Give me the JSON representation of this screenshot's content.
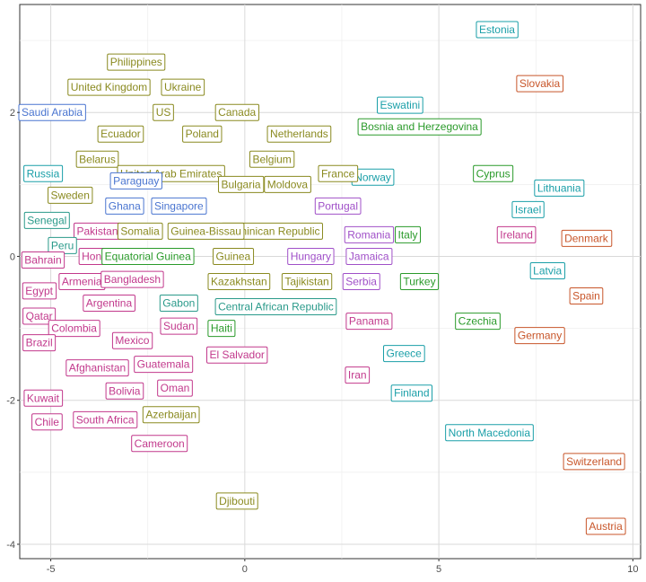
{
  "chart_data": {
    "type": "scatter",
    "title": "",
    "xlabel": "",
    "ylabel": "",
    "xlim": [
      -5.8,
      10.2
    ],
    "ylim": [
      -4.2,
      3.5
    ],
    "x_ticks": [
      -5,
      0,
      5,
      10
    ],
    "y_ticks": [
      -4,
      -2,
      0,
      2
    ],
    "grid": true,
    "legend": "none",
    "points": [
      {
        "label": "Estonia",
        "x": 6.5,
        "y": 3.15,
        "color": "#1a9fa8"
      },
      {
        "label": "Slovakia",
        "x": 7.6,
        "y": 2.4,
        "color": "#c8562a"
      },
      {
        "label": "Eswatini",
        "x": 4.0,
        "y": 2.1,
        "color": "#1a9fa8"
      },
      {
        "label": "Bosnia and Herzegovina",
        "x": 4.5,
        "y": 1.8,
        "color": "#2a9a2a"
      },
      {
        "label": "Cyprus",
        "x": 6.4,
        "y": 1.15,
        "color": "#2a9a2a"
      },
      {
        "label": "Lithuania",
        "x": 8.1,
        "y": 0.95,
        "color": "#1a9fa8"
      },
      {
        "label": "Israel",
        "x": 7.3,
        "y": 0.65,
        "color": "#1a9fa8"
      },
      {
        "label": "Ireland",
        "x": 7.0,
        "y": 0.3,
        "color": "#c2398c"
      },
      {
        "label": "Denmark",
        "x": 8.8,
        "y": 0.25,
        "color": "#c8562a"
      },
      {
        "label": "Latvia",
        "x": 7.8,
        "y": -0.2,
        "color": "#1a9fa8"
      },
      {
        "label": "Spain",
        "x": 8.8,
        "y": -0.55,
        "color": "#c8562a"
      },
      {
        "label": "Czechia",
        "x": 6.0,
        "y": -0.9,
        "color": "#2a9a2a"
      },
      {
        "label": "Germany",
        "x": 7.6,
        "y": -1.1,
        "color": "#c8562a"
      },
      {
        "label": "North Macedonia",
        "x": 6.3,
        "y": -2.45,
        "color": "#1a9fa8"
      },
      {
        "label": "Switzerland",
        "x": 9.0,
        "y": -2.85,
        "color": "#c8562a"
      },
      {
        "label": "Austria",
        "x": 9.3,
        "y": -3.75,
        "color": "#c8562a"
      },
      {
        "label": "Norway",
        "x": 3.3,
        "y": 1.1,
        "color": "#1a9fa8"
      },
      {
        "label": "France",
        "x": 2.4,
        "y": 1.15,
        "color": "#8a8a20"
      },
      {
        "label": "Portugal",
        "x": 2.4,
        "y": 0.7,
        "color": "#a050c8"
      },
      {
        "label": "Romania",
        "x": 3.2,
        "y": 0.3,
        "color": "#a050c8"
      },
      {
        "label": "Italy",
        "x": 4.2,
        "y": 0.3,
        "color": "#2a9a2a"
      },
      {
        "label": "Jamaica",
        "x": 3.2,
        "y": 0.0,
        "color": "#a050c8"
      },
      {
        "label": "Serbia",
        "x": 3.0,
        "y": -0.35,
        "color": "#a050c8"
      },
      {
        "label": "Turkey",
        "x": 4.5,
        "y": -0.35,
        "color": "#2a9a2a"
      },
      {
        "label": "Panama",
        "x": 3.2,
        "y": -0.9,
        "color": "#c2398c"
      },
      {
        "label": "Greece",
        "x": 4.1,
        "y": -1.35,
        "color": "#1a9fa8"
      },
      {
        "label": "Iran",
        "x": 2.9,
        "y": -1.65,
        "color": "#c2398c"
      },
      {
        "label": "Finland",
        "x": 4.3,
        "y": -1.9,
        "color": "#1a9fa8"
      },
      {
        "label": "Hungary",
        "x": 1.7,
        "y": 0.0,
        "color": "#a050c8"
      },
      {
        "label": "Tajikistan",
        "x": 1.6,
        "y": -0.35,
        "color": "#8a8a20"
      },
      {
        "label": "Dominican Republic",
        "x": 0.7,
        "y": 0.35,
        "color": "#8a8a20"
      },
      {
        "label": "Moldova",
        "x": 1.1,
        "y": 1.0,
        "color": "#8a8a20"
      },
      {
        "label": "Netherlands",
        "x": 1.4,
        "y": 1.7,
        "color": "#8a8a20"
      },
      {
        "label": "Belgium",
        "x": 0.7,
        "y": 1.35,
        "color": "#8a8a20"
      },
      {
        "label": "Canada",
        "x": -0.2,
        "y": 2.0,
        "color": "#8a8a20"
      },
      {
        "label": "Poland",
        "x": -1.1,
        "y": 1.7,
        "color": "#8a8a20"
      },
      {
        "label": "Ukraine",
        "x": -1.6,
        "y": 2.35,
        "color": "#8a8a20"
      },
      {
        "label": "Philippines",
        "x": -2.8,
        "y": 2.7,
        "color": "#8a8a20"
      },
      {
        "label": "United Kingdom",
        "x": -3.5,
        "y": 2.35,
        "color": "#8a8a20"
      },
      {
        "label": "US",
        "x": -2.1,
        "y": 2.0,
        "color": "#8a8a20"
      },
      {
        "label": "Saudi Arabia",
        "x": -5.0,
        "y": 2.0,
        "color": "#4a75d0"
      },
      {
        "label": "Ecuador",
        "x": -3.2,
        "y": 1.7,
        "color": "#8a8a20"
      },
      {
        "label": "Belarus",
        "x": -3.8,
        "y": 1.35,
        "color": "#8a8a20"
      },
      {
        "label": "United Arab Emirates",
        "x": -1.9,
        "y": 1.15,
        "color": "#8a8a20"
      },
      {
        "label": "Paraguay",
        "x": -2.8,
        "y": 1.05,
        "color": "#4a75d0"
      },
      {
        "label": "Bulgaria",
        "x": -0.1,
        "y": 1.0,
        "color": "#8a8a20"
      },
      {
        "label": "Russia",
        "x": -5.2,
        "y": 1.15,
        "color": "#1a9fa8"
      },
      {
        "label": "Sweden",
        "x": -4.5,
        "y": 0.85,
        "color": "#8a8a20"
      },
      {
        "label": "Ghana",
        "x": -3.1,
        "y": 0.7,
        "color": "#4a75d0"
      },
      {
        "label": "Singapore",
        "x": -1.7,
        "y": 0.7,
        "color": "#4a75d0"
      },
      {
        "label": "Senegal",
        "x": -5.1,
        "y": 0.5,
        "color": "#2a9a8a"
      },
      {
        "label": "Pakistan",
        "x": -3.8,
        "y": 0.35,
        "color": "#c2398c"
      },
      {
        "label": "Somalia",
        "x": -2.7,
        "y": 0.35,
        "color": "#8a8a20"
      },
      {
        "label": "Guinea-Bissau",
        "x": -1.0,
        "y": 0.35,
        "color": "#8a8a20"
      },
      {
        "label": "Peru",
        "x": -4.7,
        "y": 0.15,
        "color": "#2a9a8a"
      },
      {
        "label": "Bahrain",
        "x": -5.2,
        "y": -0.05,
        "color": "#c2398c"
      },
      {
        "label": "Honduras",
        "x": -3.6,
        "y": 0.0,
        "color": "#c2398c"
      },
      {
        "label": "Equatorial Guinea",
        "x": -2.5,
        "y": 0.0,
        "color": "#2a9a2a"
      },
      {
        "label": "Guinea",
        "x": -0.3,
        "y": 0.0,
        "color": "#8a8a20"
      },
      {
        "label": "Kazakhstan",
        "x": -0.15,
        "y": -0.35,
        "color": "#8a8a20"
      },
      {
        "label": "Armenia",
        "x": -4.2,
        "y": -0.35,
        "color": "#c2398c"
      },
      {
        "label": "Bangladesh",
        "x": -2.9,
        "y": -0.32,
        "color": "#c2398c"
      },
      {
        "label": "Egypt",
        "x": -5.3,
        "y": -0.48,
        "color": "#c2398c"
      },
      {
        "label": "Gabon",
        "x": -1.7,
        "y": -0.65,
        "color": "#2a9a8a"
      },
      {
        "label": "Central African Republic",
        "x": 0.8,
        "y": -0.7,
        "color": "#2a9a8a"
      },
      {
        "label": "Argentina",
        "x": -3.5,
        "y": -0.65,
        "color": "#c2398c"
      },
      {
        "label": "Qatar",
        "x": -5.3,
        "y": -0.83,
        "color": "#c2398c"
      },
      {
        "label": "Sudan",
        "x": -1.7,
        "y": -0.97,
        "color": "#c2398c"
      },
      {
        "label": "Haiti",
        "x": -0.6,
        "y": -1.0,
        "color": "#2a9a2a"
      },
      {
        "label": "Colombia",
        "x": -4.4,
        "y": -1.0,
        "color": "#c2398c"
      },
      {
        "label": "Mexico",
        "x": -2.9,
        "y": -1.17,
        "color": "#c2398c"
      },
      {
        "label": "Brazil",
        "x": -5.3,
        "y": -1.2,
        "color": "#c2398c"
      },
      {
        "label": "El Salvador",
        "x": -0.2,
        "y": -1.37,
        "color": "#c2398c"
      },
      {
        "label": "Afghanistan",
        "x": -3.8,
        "y": -1.55,
        "color": "#c2398c"
      },
      {
        "label": "Guatemala",
        "x": -2.1,
        "y": -1.5,
        "color": "#c2398c"
      },
      {
        "label": "Oman",
        "x": -1.8,
        "y": -1.83,
        "color": "#c2398c"
      },
      {
        "label": "Bolivia",
        "x": -3.1,
        "y": -1.87,
        "color": "#c2398c"
      },
      {
        "label": "Kuwait",
        "x": -5.2,
        "y": -1.97,
        "color": "#c2398c"
      },
      {
        "label": "Azerbaijan",
        "x": -1.9,
        "y": -2.2,
        "color": "#8a8a20"
      },
      {
        "label": "Chile",
        "x": -5.1,
        "y": -2.3,
        "color": "#c2398c"
      },
      {
        "label": "South Africa",
        "x": -3.6,
        "y": -2.27,
        "color": "#c2398c"
      },
      {
        "label": "Cameroon",
        "x": -2.2,
        "y": -2.6,
        "color": "#c2398c"
      },
      {
        "label": "Djibouti",
        "x": -0.2,
        "y": -3.4,
        "color": "#8a8a20"
      }
    ]
  }
}
